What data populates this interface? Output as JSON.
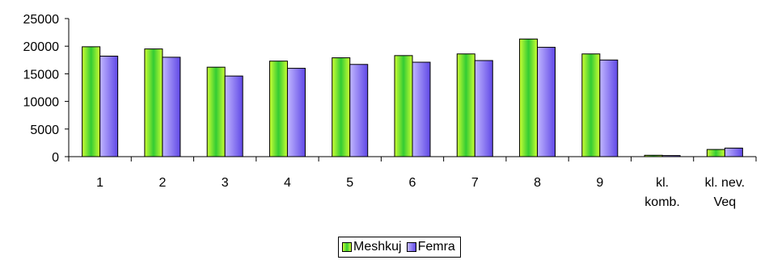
{
  "chart_data": {
    "type": "bar",
    "categories": [
      "1",
      "2",
      "3",
      "4",
      "5",
      "6",
      "7",
      "8",
      "9",
      "kl. komb.",
      "kl. nev. Veq"
    ],
    "category_lines": [
      [
        "1"
      ],
      [
        "2"
      ],
      [
        "3"
      ],
      [
        "4"
      ],
      [
        "5"
      ],
      [
        "6"
      ],
      [
        "7"
      ],
      [
        "8"
      ],
      [
        "9"
      ],
      [
        "kl.",
        "komb."
      ],
      [
        "kl. nev.",
        "Veq"
      ]
    ],
    "series": [
      {
        "name": "Meshkuj",
        "values": [
          19900,
          19500,
          16200,
          17300,
          17900,
          18300,
          18600,
          21300,
          18600,
          250,
          1300
        ]
      },
      {
        "name": "Femra",
        "values": [
          18200,
          18000,
          14600,
          16000,
          16700,
          17100,
          17400,
          19800,
          17500,
          200,
          1550
        ]
      }
    ],
    "ylim": [
      0,
      25000
    ],
    "yticks": [
      "0",
      "5000",
      "10000",
      "15000",
      "20000",
      "25000"
    ],
    "grid": false,
    "legend_position": "bottom",
    "colors": {
      "Meshkuj_edge": "#ccff33",
      "Meshkuj_center": "#33cc33",
      "Femra_light": "#c0b6ff",
      "Femra_dark": "#6048e6",
      "outline": "#000000"
    }
  }
}
